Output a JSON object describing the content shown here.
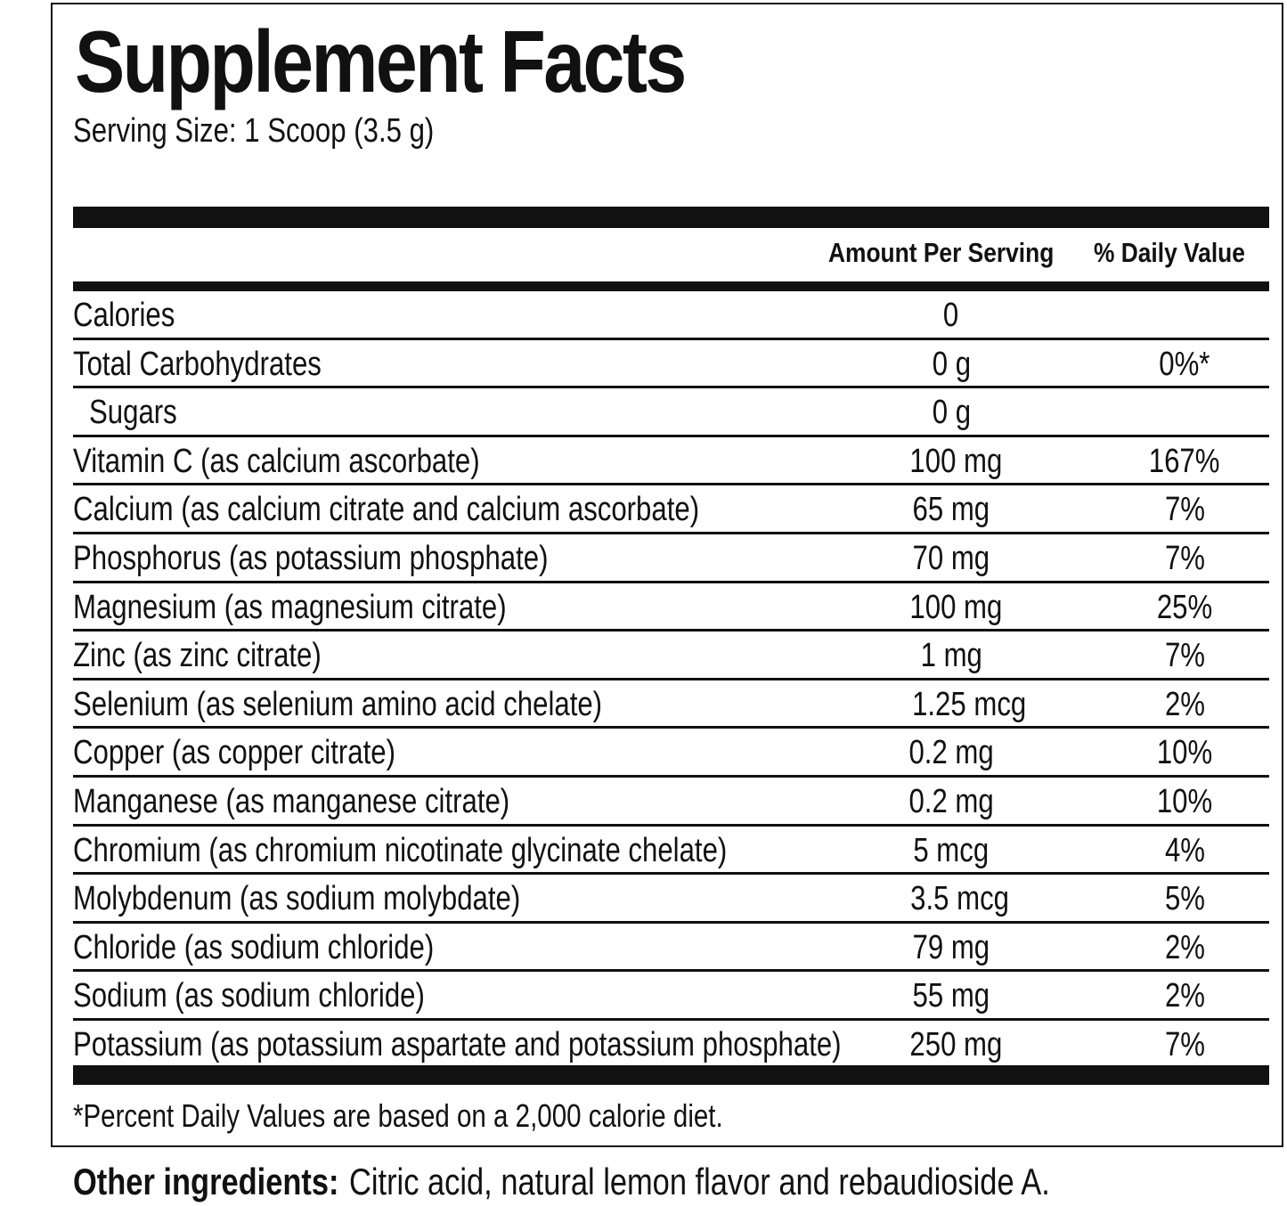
{
  "title": "Supplement Facts",
  "serving_size": "Serving Size: 1 Scoop (3.5 g)",
  "columns": {
    "amount": "Amount Per Serving",
    "daily_value": "% Daily Value"
  },
  "rows": [
    {
      "name": "Calories",
      "amount": "0",
      "dv": "",
      "indent": false
    },
    {
      "name": "Total Carbohydrates",
      "amount": "0 g",
      "dv": "0%*",
      "indent": false
    },
    {
      "name": "Sugars",
      "amount": "0 g",
      "dv": "",
      "indent": true
    },
    {
      "name": "Vitamin C (as calcium ascorbate)",
      "amount": "100 mg",
      "dv": "167%",
      "indent": false
    },
    {
      "name": "Calcium (as calcium citrate and calcium ascorbate)",
      "amount": "65 mg",
      "dv": "7%",
      "indent": false
    },
    {
      "name": "Phosphorus (as potassium phosphate)",
      "amount": "70 mg",
      "dv": "7%",
      "indent": false
    },
    {
      "name": "Magnesium (as magnesium citrate)",
      "amount": "100 mg",
      "dv": "25%",
      "indent": false
    },
    {
      "name": "Zinc (as zinc citrate)",
      "amount": "1 mg",
      "dv": "7%",
      "indent": false
    },
    {
      "name": "Selenium (as selenium amino acid chelate)",
      "amount": "1.25 mcg",
      "dv": "2%",
      "indent": false
    },
    {
      "name": "Copper (as copper citrate)",
      "amount": "0.2 mg",
      "dv": "10%",
      "indent": false
    },
    {
      "name": "Manganese (as manganese citrate)",
      "amount": "0.2 mg",
      "dv": "10%",
      "indent": false
    },
    {
      "name": "Chromium (as chromium nicotinate glycinate chelate)",
      "amount": "5 mcg",
      "dv": "4%",
      "indent": false
    },
    {
      "name": "Molybdenum (as sodium molybdate)",
      "amount": "3.5 mcg",
      "dv": "5%",
      "indent": false
    },
    {
      "name": "Chloride (as sodium chloride)",
      "amount": "79 mg",
      "dv": "2%",
      "indent": false
    },
    {
      "name": "Sodium (as sodium chloride)",
      "amount": "55 mg",
      "dv": "2%",
      "indent": false
    },
    {
      "name": "Potassium (as potassium aspartate and potassium phosphate)",
      "amount": "250 mg",
      "dv": "7%",
      "indent": false
    }
  ],
  "footnote": "*Percent Daily Values are based on a 2,000 calorie diet.",
  "other_ingredients": {
    "label": "Other ingredients:",
    "text": "Citric acid, natural lemon flavor and rebaudioside A."
  }
}
